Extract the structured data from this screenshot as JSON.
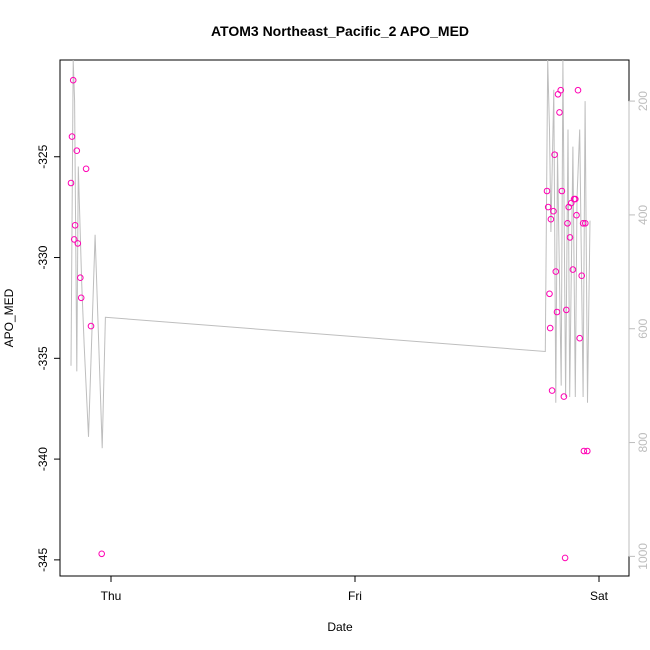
{
  "chart_data": {
    "type": "scatter",
    "title": "ATOM3 Northeast_Pacific_2 APO_MED",
    "xlabel": "Date",
    "ylabel": "APO_MED",
    "x_unit": "day",
    "x_ticks": [
      {
        "value": 1,
        "label": "Thu"
      },
      {
        "value": 2,
        "label": "Fri"
      },
      {
        "value": 3,
        "label": "Sat"
      }
    ],
    "xlim": [
      0.791,
      3.123
    ],
    "ylim": [
      -345.8,
      -320.2
    ],
    "y_ticks": [
      -345,
      -340,
      -335,
      -330,
      -325
    ],
    "y2_ticks": [
      200,
      400,
      600,
      800,
      1000
    ],
    "y2lim": [
      127.8,
      1034.5
    ],
    "grid": false,
    "colors": {
      "points": "#ff00b4",
      "line": "#bebebe",
      "axis": "#000000",
      "right_axis": "#bdbdbd"
    },
    "series": [
      {
        "style": "points",
        "x": [
          0.836,
          0.84,
          0.845,
          0.849,
          0.853,
          0.86,
          0.864,
          0.874,
          0.878,
          0.898,
          0.918,
          0.962,
          2.787,
          2.792,
          2.797,
          2.8,
          2.803,
          2.808,
          2.813,
          2.818,
          2.823,
          2.828,
          2.832,
          2.838,
          2.843,
          2.848,
          2.856,
          2.861,
          2.866,
          2.871,
          2.876,
          2.881,
          2.886,
          2.893,
          2.898,
          2.903,
          2.908,
          2.914,
          2.921,
          2.929,
          2.935,
          2.938,
          2.944,
          2.952
        ],
        "y": [
          -326.3,
          -324.0,
          -321.2,
          -329.1,
          -328.4,
          -324.7,
          -329.3,
          -331.0,
          -332.0,
          -325.6,
          -333.4,
          -344.7,
          -326.7,
          -327.5,
          -331.8,
          -333.5,
          -328.1,
          -336.6,
          -327.7,
          -324.9,
          -330.7,
          -332.7,
          -321.9,
          -322.8,
          -321.7,
          -326.7,
          -336.9,
          -344.9,
          -332.6,
          -328.3,
          -327.5,
          -329.0,
          -327.3,
          -330.6,
          -327.1,
          -327.1,
          -327.9,
          -321.7,
          -334.0,
          -330.9,
          -328.3,
          -339.6,
          -328.3,
          -339.6
        ],
        "y_plot": [
          -326.3,
          -324.0,
          -321.2,
          -329.1,
          -328.4,
          -324.7,
          -329.3,
          -331.0,
          -332.0,
          -325.6,
          -333.4,
          -344.7,
          -326.7,
          -327.5,
          -331.8,
          -333.5,
          -328.1,
          -336.6,
          -327.7,
          -324.9,
          -330.7,
          -332.7,
          -321.9,
          -322.8,
          -321.7,
          -326.7,
          -336.9,
          -344.9,
          -332.6,
          -328.3,
          -327.5,
          -329.0,
          -327.3,
          -330.6,
          -327.1,
          -327.1,
          -327.9,
          -321.7,
          -334.0,
          -330.9,
          -328.3,
          -339.6,
          -328.3,
          -339.6
        ]
      },
      {
        "style": "line",
        "axis": "right",
        "x": [
          0.836,
          0.845,
          0.851,
          0.86,
          0.866,
          0.88,
          0.89,
          0.908,
          0.935,
          0.964,
          0.977,
          2.78,
          2.79,
          2.797,
          2.803,
          2.815,
          2.823,
          2.83,
          2.845,
          2.852,
          2.863,
          2.873,
          2.88,
          2.893,
          2.903,
          2.91,
          2.921,
          2.935,
          2.943,
          2.953,
          2.963
        ],
        "y": [
          665,
          127.8,
          200,
          675,
          315,
          520,
          630,
          790,
          435,
          810,
          580,
          640,
          127.8,
          250,
          430,
          180,
          730,
          290,
          700,
          127.8,
          720,
          250,
          720,
          280,
          720,
          370,
          250,
          720,
          200,
          730,
          410
        ]
      }
    ]
  }
}
